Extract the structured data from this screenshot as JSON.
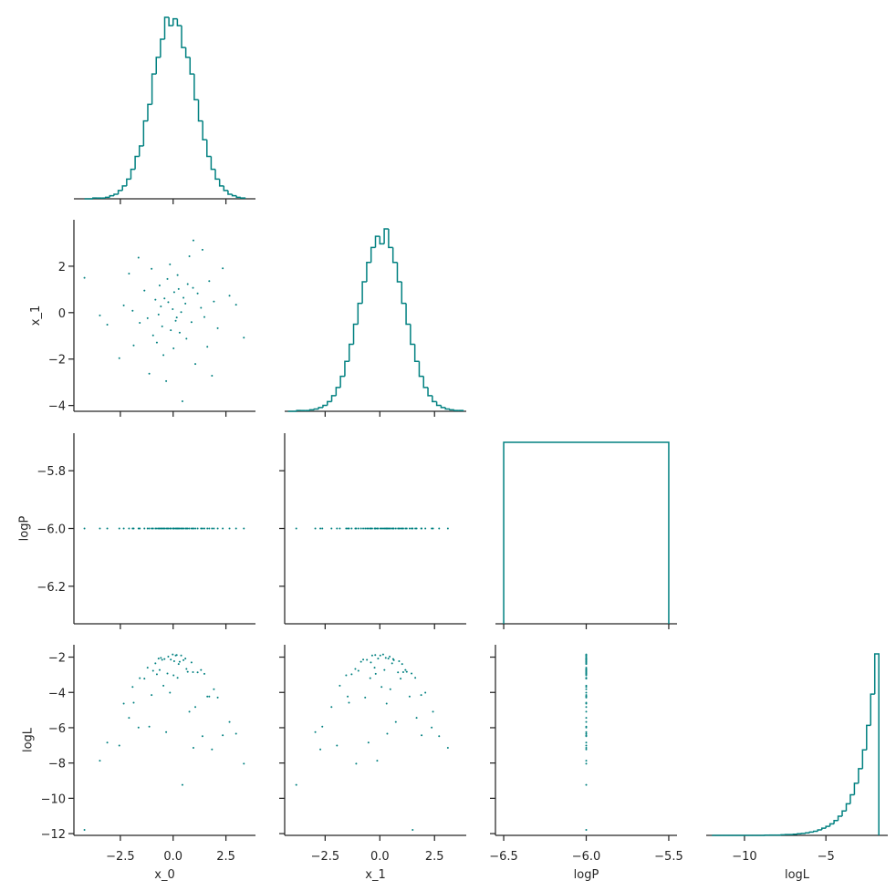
{
  "chart_data": {
    "type": "pairplot",
    "color": "#008080",
    "axes": [
      {
        "label": "x_0",
        "xlim": [
          -4.7,
          3.9
        ],
        "xticks": [
          {
            "value": -2.5,
            "label": "−2.5"
          },
          {
            "value": 0,
            "label": "0.0"
          },
          2.5
        ]
      },
      {
        "label": "x_1",
        "xlim": [
          -4.35,
          3.95
        ],
        "xticks": [
          {
            "value": -2.5,
            "label": "−2.5"
          },
          {
            "value": 0,
            "label": "0.0"
          },
          2.5
        ],
        "ylim": [
          -4.25,
          4.0
        ],
        "yticks": [
          {
            "value": -4,
            "label": "−4"
          },
          {
            "value": -2,
            "label": "−2"
          },
          0,
          2
        ]
      },
      {
        "label": "logP",
        "xlim": [
          -6.55,
          -5.45
        ],
        "xticks": [
          {
            "value": -6.5,
            "label": "−6.5"
          },
          {
            "value": -6.0,
            "label": "−6.0"
          },
          {
            "value": -5.5,
            "label": "−5.5"
          }
        ],
        "ylim": [
          -6.33,
          -5.67
        ],
        "yticks": [
          {
            "value": -6.2,
            "label": "−6.2"
          },
          {
            "value": -6.0,
            "label": "−6.0"
          },
          {
            "value": -5.8,
            "label": "−5.8"
          }
        ]
      },
      {
        "label": "logL",
        "xlim": [
          -12.35,
          -1.2
        ],
        "xticks": [
          {
            "value": -10,
            "label": "−10"
          },
          {
            "value": -5,
            "label": "−5"
          }
        ],
        "ylim": [
          -12.1,
          -1.3
        ],
        "yticks": [
          {
            "value": -12,
            "label": "−12"
          },
          {
            "value": -10,
            "label": "−10"
          },
          {
            "value": -8,
            "label": "−8"
          },
          {
            "value": -6,
            "label": "−6"
          },
          {
            "value": -4,
            "label": "−4"
          },
          {
            "value": -2,
            "label": "−2"
          }
        ]
      }
    ],
    "histograms": [
      {
        "bins": [
          -4.2,
          -4,
          -3.8,
          -3.6,
          -3.4,
          -3.2,
          -3,
          -2.8,
          -2.6,
          -2.4,
          -2.2,
          -2,
          -1.8,
          -1.6,
          -1.4,
          -1.2,
          -1,
          -0.8,
          -0.6,
          -0.4,
          -0.2,
          0,
          0.2,
          0.4,
          0.6,
          0.8,
          1,
          1.2,
          1.4,
          1.6,
          1.8,
          2,
          2.2,
          2.4,
          2.6,
          2.8,
          3,
          3.2,
          3.4
        ],
        "counts": [
          0,
          0,
          1,
          1,
          1,
          2,
          4,
          6,
          11,
          17,
          26,
          39,
          56,
          70,
          103,
          125,
          165,
          187,
          211,
          240,
          229,
          238,
          229,
          200,
          187,
          165,
          131,
          103,
          78,
          56,
          39,
          26,
          17,
          11,
          6,
          4,
          2,
          1
        ]
      },
      {
        "bins": [
          -4.2,
          -4,
          -3.8,
          -3.6,
          -3.4,
          -3.2,
          -3,
          -2.8,
          -2.6,
          -2.4,
          -2.2,
          -2,
          -1.8,
          -1.6,
          -1.4,
          -1.2,
          -1,
          -0.8,
          -0.6,
          -0.4,
          -0.2,
          0,
          0.2,
          0.4,
          0.6,
          0.8,
          1,
          1.2,
          1.4,
          1.6,
          1.8,
          2,
          2.2,
          2.4,
          2.6,
          2.8,
          3,
          3.2,
          3.4,
          3.6,
          3.8
        ],
        "counts": [
          0,
          0,
          1,
          1,
          1,
          2,
          3,
          5,
          8,
          13,
          21,
          32,
          47,
          67,
          90,
          117,
          145,
          174,
          200,
          220,
          235,
          225,
          245,
          220,
          200,
          174,
          145,
          117,
          90,
          67,
          47,
          32,
          21,
          13,
          8,
          5,
          3,
          2,
          1,
          1
        ]
      },
      {
        "bins": [
          -6.5,
          -5.5
        ],
        "counts": [
          3000
        ]
      },
      {
        "bins": [
          -12,
          -11.75,
          -11.5,
          -11.25,
          -11,
          -10.75,
          -10.5,
          -10.25,
          -10,
          -9.75,
          -9.5,
          -9.25,
          -9,
          -8.75,
          -8.5,
          -8.25,
          -8,
          -7.75,
          -7.5,
          -7.25,
          -7,
          -6.75,
          -6.5,
          -6.25,
          -6,
          -5.75,
          -5.5,
          -5.25,
          -5,
          -4.75,
          -4.5,
          -4.25,
          -4,
          -3.75,
          -3.5,
          -3.25,
          -3,
          -2.75,
          -2.5,
          -2.25,
          -2,
          -1.75
        ],
        "counts": [
          0,
          0,
          0,
          0,
          0,
          0,
          0,
          0,
          0,
          0,
          0,
          0,
          0,
          1,
          1,
          1,
          1,
          2,
          3,
          3,
          4,
          6,
          7,
          9,
          12,
          15,
          20,
          26,
          33,
          42,
          54,
          70,
          89,
          115,
          148,
          190,
          243,
          312,
          401,
          515,
          662
        ]
      }
    ],
    "samples": [
      [
        0.12,
        -0.84,
        1.32,
        -0.27,
        0.63,
        -1.58,
        0.05,
        2.11,
        -0.46,
        0.94,
        -2.34,
        0.38,
        -1.02,
        1.71,
        -0.11,
        0.77,
        -0.69,
        1.05,
        -1.36,
        0.21,
        -3.12,
        2.67,
        -0.33,
        0.49,
        -1.87,
        1.48,
        -0.58,
        0.02,
        3.35,
        -4.2,
        0.87,
        -0.95,
        1.93,
        -0.15,
        0.31,
        -2.09,
        0.58,
        -0.41,
        1.16,
        -1.21,
        0.44,
        -2.55,
        2.35,
        -0.02,
        0.69,
        -0.77,
        1.62,
        -1.64,
        0.96,
        -3.47,
        2.98,
        -0.52,
        0.17,
        -0.23,
        1.39,
        -1.13,
        0.26,
        -0.64,
        1.84,
        -1.92
      ],
      [
        -0.35,
        0.56,
        0.21,
        1.45,
        -1.12,
        -0.44,
        0.88,
        -0.67,
        -1.83,
        1.07,
        0.31,
        0.02,
        1.89,
        1.36,
        -0.76,
        2.43,
        -0.08,
        -2.21,
        0.95,
        1.62,
        -0.52,
        0.73,
        -2.95,
        0.64,
        -1.41,
        -0.19,
        0.27,
        -1.54,
        -1.08,
        1.5,
        -0.41,
        -0.98,
        0.48,
        2.08,
        -0.86,
        1.68,
        0.39,
        0.61,
        0.83,
        -0.24,
        -3.82,
        -1.96,
        1.91,
        0.15,
        1.23,
        -1.29,
        -1.47,
        2.37,
        3.11,
        -0.12,
        0.34,
        -0.59,
        -0.21,
        0.45,
        2.71,
        -2.63,
        1.02,
        1.17,
        -2.72,
        0.08
      ],
      [
        -6,
        -6,
        -6,
        -6,
        -6,
        -6,
        -6,
        -6,
        -6,
        -6,
        -6,
        -6,
        -6,
        -6,
        -6,
        -6,
        -6,
        -6,
        -6,
        -6,
        -6,
        -6,
        -6,
        -6,
        -6,
        -6,
        -6,
        -6,
        -6,
        -6,
        -6,
        -6,
        -6,
        -6,
        -6,
        -6,
        -6,
        -6,
        -6,
        -6,
        -6,
        -6,
        -6,
        -6,
        -6,
        -6,
        -6,
        -6,
        -6,
        -6,
        -6,
        -6,
        -6,
        -6,
        -6,
        -6,
        -6,
        -6,
        -6,
        -6
      ],
      [
        -1.91,
        -2.35,
        -2.73,
        -2.93,
        -2.67,
        -3.19,
        -2.23,
        -4.29,
        -3.62,
        -2.85,
        -4.63,
        -1.91,
        -4.15,
        -4.23,
        -2.14,
        -5.09,
        -2.08,
        -4.83,
        -3.22,
        -3.17,
        -6.84,
        -5.67,
        -6.25,
        -2.17,
        -4.58,
        -2.95,
        -2.04,
        -3.03,
        -8.04,
        -11.79,
        -2.3,
        -2.77,
        -3.82,
        -4.01,
        -2.26,
        -5.44,
        -2.08,
        -2.11,
        -2.86,
        -2.6,
        -9.24,
        -7.01,
        -6.43,
        -1.85,
        -2.83,
        -2.97,
        -4.23,
        -5.99,
        -7.14,
        -7.87,
        -6.34,
        -2.15,
        -1.88,
        -1.97,
        -6.48,
        -5.94,
        -2.39,
        -2.73,
        -7.23,
        -3.69
      ]
    ]
  }
}
